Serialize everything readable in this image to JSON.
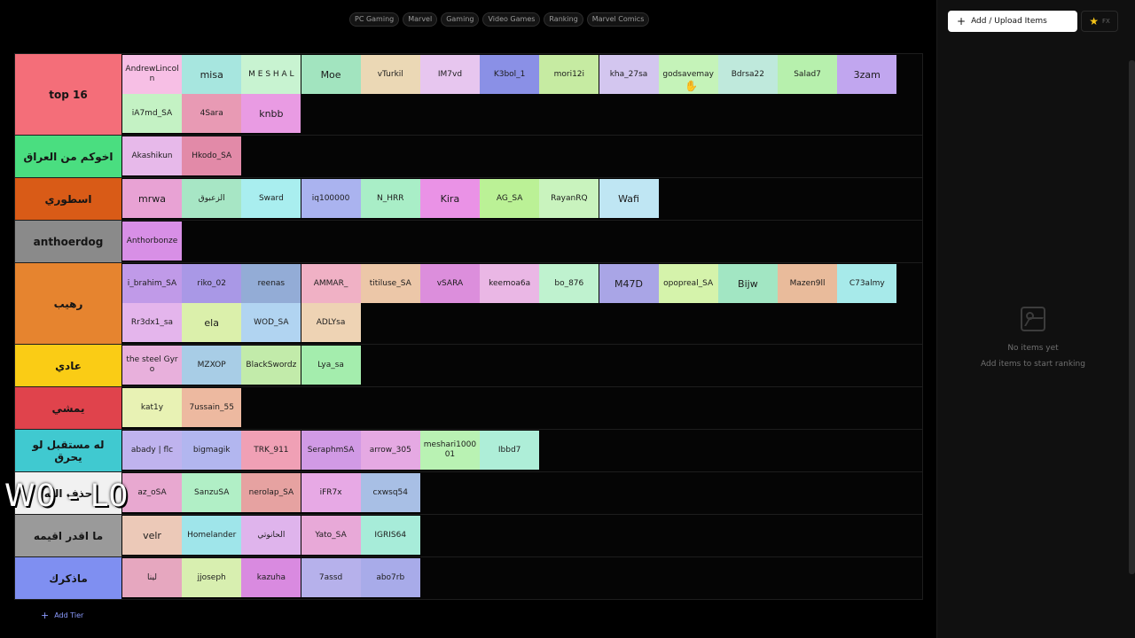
{
  "tags": [
    "PC Gaming",
    "Marvel",
    "Gaming",
    "Video Games",
    "Ranking",
    "Marvel Comics"
  ],
  "tiers": [
    {
      "label": "top 16",
      "color": "#f46e79",
      "items": [
        {
          "t": "AndrewLincoln",
          "c": "#f7bfe5"
        },
        {
          "t": "misa",
          "c": "#a7e6df",
          "big": true
        },
        {
          "t": "M E S H A L",
          "c": "#c8f3d1"
        },
        {
          "t": "Moe",
          "c": "#a2e4bf",
          "big": true
        },
        {
          "t": "vTurkil",
          "c": "#ebd8b5"
        },
        {
          "t": "IM7vd",
          "c": "#e7c6ef"
        },
        {
          "t": "K3bol_1",
          "c": "#8a90e6"
        },
        {
          "t": "mori12i",
          "c": "#c6eba2"
        },
        {
          "t": "kha_27sa",
          "c": "#d3c6ef"
        },
        {
          "t": "godsavemay",
          "c": "#c5f3b9"
        },
        {
          "t": "Bdrsa22",
          "c": "#bfe9dc"
        },
        {
          "t": "Salad7",
          "c": "#b7f0ad"
        },
        {
          "t": "3zam",
          "c": "#c1a6ef",
          "big": true
        },
        {
          "t": "iA7md_SA",
          "c": "#c4f2c4"
        },
        {
          "t": "4Sara",
          "c": "#e89ab4"
        },
        {
          "t": "knbb",
          "c": "#e99be3",
          "big": true
        }
      ]
    },
    {
      "label": "اخوكم من العراق",
      "color": "#4ade80",
      "items": [
        {
          "t": "Akashikun",
          "c": "#e7b9ea"
        },
        {
          "t": "Hkodo_SA",
          "c": "#e28aa8"
        }
      ]
    },
    {
      "label": "اسطوري",
      "color": "#d95b17",
      "items": [
        {
          "t": "mrwa",
          "c": "#e8a2d4",
          "big": true
        },
        {
          "t": "الزعبوق",
          "c": "#a7e6c5"
        },
        {
          "t": "Sward",
          "c": "#a9eeef"
        },
        {
          "t": "iq100000",
          "c": "#aab3ef"
        },
        {
          "t": "N_HRR",
          "c": "#a9eec7"
        },
        {
          "t": "Kira",
          "c": "#ea92e6",
          "big": true
        },
        {
          "t": "AG_SA",
          "c": "#bbf196"
        },
        {
          "t": "RayanRQ",
          "c": "#c9f3be"
        },
        {
          "t": "Wafi",
          "c": "#bfe6f3",
          "big": true
        }
      ]
    },
    {
      "label": "anthoerdog",
      "color": "#8a8a8a",
      "items": [
        {
          "t": "Anthorbonze",
          "c": "#d88fe6"
        }
      ]
    },
    {
      "label": "رهيب",
      "color": "#e6842f",
      "items": [
        {
          "t": "i_brahim_SA",
          "c": "#c09ae8"
        },
        {
          "t": "riko_02",
          "c": "#a998e6"
        },
        {
          "t": "reenas",
          "c": "#93acd6"
        },
        {
          "t": "AMMAR_",
          "c": "#f0b1c5"
        },
        {
          "t": "titiluse_SA",
          "c": "#ecc7a8"
        },
        {
          "t": "vSARA",
          "c": "#dc8edc"
        },
        {
          "t": "keemoa6a",
          "c": "#eab7e5"
        },
        {
          "t": "bo_876",
          "c": "#bff2cf"
        },
        {
          "t": "M47D",
          "c": "#a9a5e6",
          "big": true
        },
        {
          "t": "opopreal_SA",
          "c": "#d5f3ab"
        },
        {
          "t": "Bijw",
          "c": "#a2e6c3",
          "big": true
        },
        {
          "t": "Mazen9ll",
          "c": "#e9bb9b"
        },
        {
          "t": "C73almy",
          "c": "#a7eaea"
        },
        {
          "t": "Rr3dx1_sa",
          "c": "#e4b5ec"
        },
        {
          "t": "ela",
          "c": "#dbf0ab",
          "big": true
        },
        {
          "t": "WOD_SA",
          "c": "#b1d4f1"
        },
        {
          "t": "ADLYsa",
          "c": "#eed3b4"
        }
      ]
    },
    {
      "label": "عادي",
      "color": "#facc15",
      "items": [
        {
          "t": "the steel Gyro",
          "c": "#e8b0dc"
        },
        {
          "t": "MZXOP",
          "c": "#a8cde6"
        },
        {
          "t": "BlackSwordz",
          "c": "#c2ebaa"
        },
        {
          "t": "Lya_sa",
          "c": "#a4edad"
        }
      ]
    },
    {
      "label": "يمشي",
      "color": "#e0434c",
      "items": [
        {
          "t": "kat1y",
          "c": "#e8f2b4"
        },
        {
          "t": "7ussain_55",
          "c": "#edb9a0"
        }
      ]
    },
    {
      "label": "له مستقبل لو يحرق",
      "color": "#40c9d0",
      "items": [
        {
          "t": "abady | flc",
          "c": "#bfb3ee"
        },
        {
          "t": "bigmagik",
          "c": "#b2b6ef"
        },
        {
          "t": "TRK_911",
          "c": "#f0a0b5"
        },
        {
          "t": "SeraphmSA",
          "c": "#d19ae5"
        },
        {
          "t": "arrow_305",
          "c": "#e5a9e3"
        },
        {
          "t": "meshari100001",
          "c": "#b9f2b3"
        },
        {
          "t": "Ibbd7",
          "c": "#aeeed8"
        }
      ]
    },
    {
      "label": "حذف الله",
      "color": "#f1f1f1",
      "items": [
        {
          "t": "az_oSA",
          "c": "#e8a8d0"
        },
        {
          "t": "SanzuSA",
          "c": "#b1efc6"
        },
        {
          "t": "nerolap_SA",
          "c": "#e6a2a1"
        },
        {
          "t": "iFR7x",
          "c": "#e7a9e5"
        },
        {
          "t": "cxwsq54",
          "c": "#a8bfe5"
        }
      ]
    },
    {
      "label": "ما اقدر اقيمه",
      "color": "#9a9a9a",
      "items": [
        {
          "t": "velr",
          "c": "#ecc9b8",
          "big": true
        },
        {
          "t": "Homelander",
          "c": "#9fe5ea"
        },
        {
          "t": "الحانوتي",
          "c": "#dfb4ec"
        },
        {
          "t": "Yato_SA",
          "c": "#e8a9d8"
        },
        {
          "t": "IGRIS64",
          "c": "#a7ecd9"
        }
      ]
    },
    {
      "label": "ماذكرك",
      "color": "#7f8ff1",
      "items": [
        {
          "t": "لينا",
          "c": "#e6a7bf"
        },
        {
          "t": "jjoseph",
          "c": "#d8efb0"
        },
        {
          "t": "kazuha",
          "c": "#d98ae0"
        },
        {
          "t": "7assd",
          "c": "#b6b1eb"
        },
        {
          "t": "abo7rb",
          "c": "#a8abe9"
        }
      ]
    }
  ],
  "add_tier_label": "Add Tier",
  "overlay_text": "W0 - L0",
  "panel": {
    "add_button_label": "Add / Upload Items",
    "fx_label": "FX",
    "empty_title": "No items yet",
    "empty_sub": "Add items to start ranking"
  }
}
